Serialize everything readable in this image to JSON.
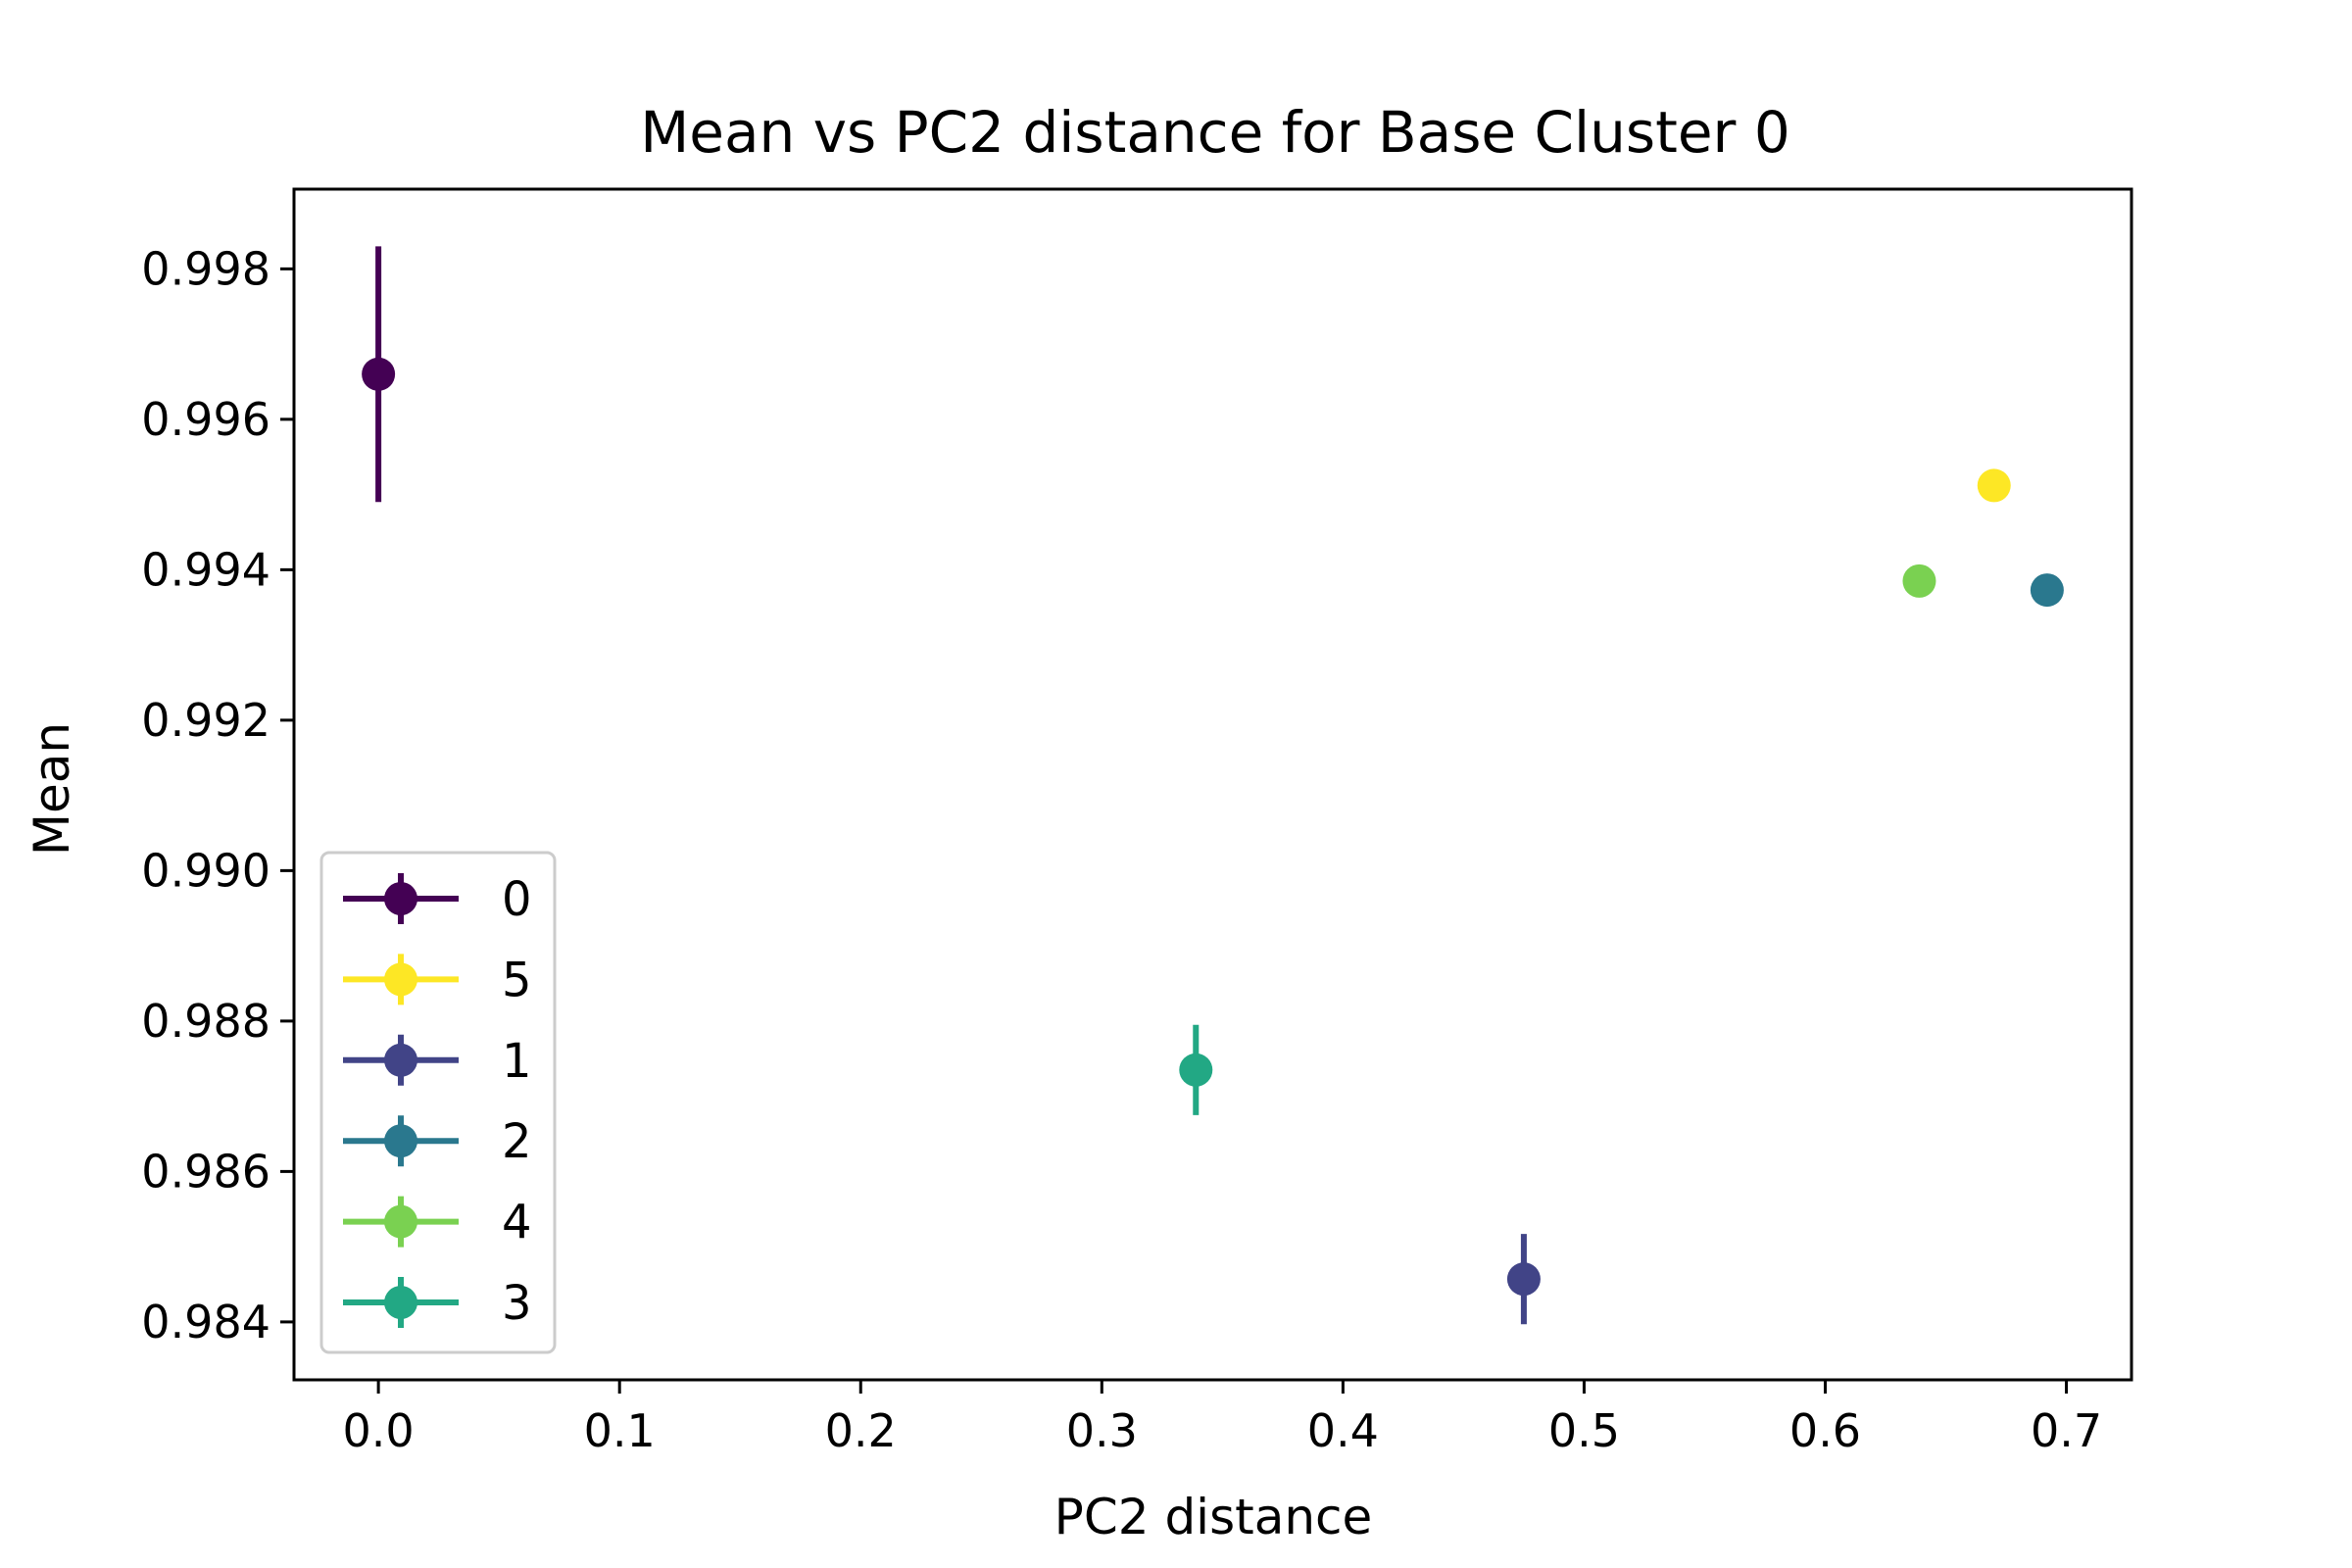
{
  "chart_data": {
    "type": "scatter",
    "title": "Mean vs PC2 distance for Base Cluster 0",
    "xlabel": "PC2 distance",
    "ylabel": "Mean",
    "xlim": [
      -0.035,
      0.727
    ],
    "ylim": [
      0.98323,
      0.99906
    ],
    "xticks": [
      "0.0",
      "0.1",
      "0.2",
      "0.3",
      "0.4",
      "0.5",
      "0.6",
      "0.7"
    ],
    "yticks": [
      "0.984",
      "0.986",
      "0.988",
      "0.990",
      "0.992",
      "0.994",
      "0.996",
      "0.998"
    ],
    "grid": false,
    "legend_position": "lower-left",
    "series": [
      {
        "name": "0",
        "color": "#440154",
        "x": 0.0,
        "y": 0.9966,
        "yerr": 0.0017
      },
      {
        "name": "5",
        "color": "#fde725",
        "x": 0.67,
        "y": 0.99512,
        "yerr": 0.0
      },
      {
        "name": "1",
        "color": "#414487",
        "x": 0.475,
        "y": 0.98457,
        "yerr": 0.0006
      },
      {
        "name": "2",
        "color": "#2a788e",
        "x": 0.692,
        "y": 0.99373,
        "yerr": 0.0
      },
      {
        "name": "4",
        "color": "#7ad151",
        "x": 0.639,
        "y": 0.99385,
        "yerr": 0.0
      },
      {
        "name": "3",
        "color": "#22a884",
        "x": 0.339,
        "y": 0.98735,
        "yerr": 0.0006
      }
    ]
  }
}
